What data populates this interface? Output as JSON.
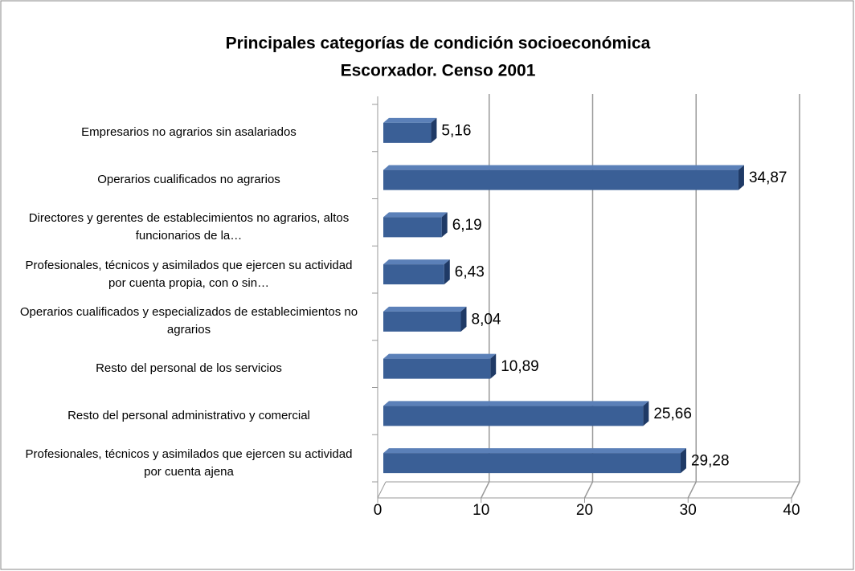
{
  "chart_data": {
    "type": "bar",
    "orientation": "horizontal",
    "title": "Principales categorías de condición socioeconómica",
    "subtitle": "Escorxador. Censo 2001",
    "categories": [
      "Empresarios no agrarios sin asalariados",
      "Operarios cualificados  no agrarios",
      "Directores y gerentes de establecimientos no agrarios, altos funcionarios de la…",
      "Profesionales, técnicos y asimilados que ejercen su actividad por cuenta propia, con o sin…",
      "Operarios cualificados y especializados de establecimientos no agrarios",
      "Resto del personal de los servicios",
      "Resto del personal administrativo y comercial",
      "Profesionales, técnicos y asimilados que ejercen su actividad por cuenta ajena"
    ],
    "values": [
      5.16,
      34.87,
      6.19,
      6.43,
      8.04,
      10.89,
      25.66,
      29.28
    ],
    "value_labels": [
      "5,16",
      "34,87",
      "6,19",
      "6,43",
      "8,04",
      "10,89",
      "25,66",
      "29,28"
    ],
    "color": "#3a5f96",
    "xlim": [
      0,
      40
    ],
    "xticks": [
      0,
      10,
      20,
      30,
      40
    ],
    "grid": true
  }
}
